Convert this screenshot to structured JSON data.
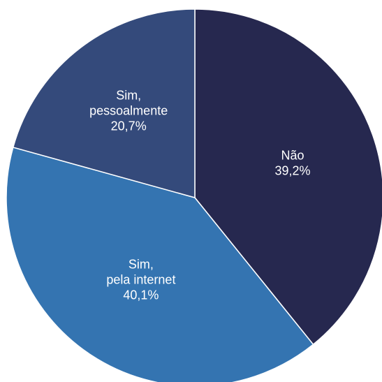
{
  "chart_data": {
    "type": "pie",
    "title": "",
    "start_angle_deg": 0,
    "direction": "clockwise",
    "slices": [
      {
        "label_lines": [
          "Não"
        ],
        "value_label": "39,2%",
        "value": 39.2,
        "color": "#26284f"
      },
      {
        "label_lines": [
          "Sim,",
          "pela internet"
        ],
        "value_label": "40,1%",
        "value": 40.1,
        "color": "#3474b1"
      },
      {
        "label_lines": [
          "Sim,",
          "pessoalmente"
        ],
        "value_label": "20,7%",
        "value": 20.7,
        "color": "#344a7b"
      }
    ]
  }
}
